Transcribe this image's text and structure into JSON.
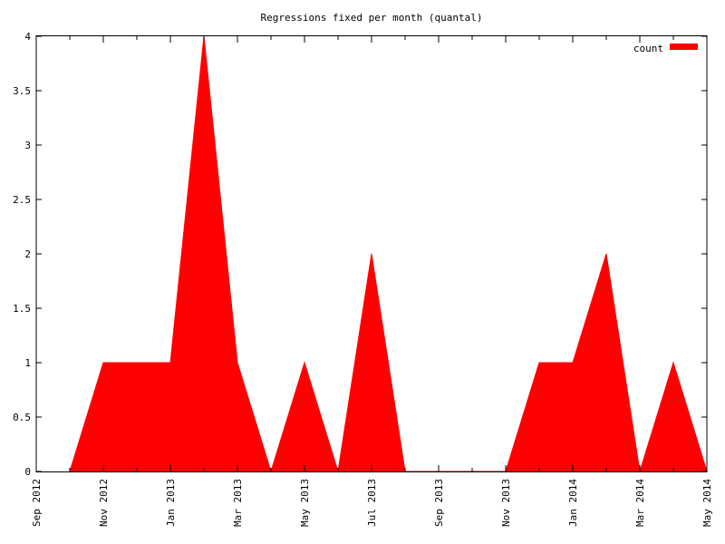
{
  "chart_data": {
    "type": "area",
    "title": "Regressions fixed per month (quantal)",
    "xlabel": "",
    "ylabel": "",
    "legend": {
      "label": "count",
      "position": "top-right"
    },
    "fill_color": "#ff0000",
    "grid": false,
    "xlim": [
      "2012-09",
      "2014-05"
    ],
    "ylim": [
      0,
      4
    ],
    "x_ticks": [
      "Sep 2012",
      "Nov 2012",
      "Jan 2013",
      "Mar 2013",
      "May 2013",
      "Jul 2013",
      "Sep 2013",
      "Nov 2013",
      "Jan 2014",
      "Mar 2014",
      "May 2014"
    ],
    "x_tick_months": [
      "2012-09",
      "2012-11",
      "2013-01",
      "2013-03",
      "2013-05",
      "2013-07",
      "2013-09",
      "2013-11",
      "2014-01",
      "2014-03",
      "2014-05"
    ],
    "y_ticks": [
      "0",
      "0.5",
      "1",
      "1.5",
      "2",
      "2.5",
      "3",
      "3.5",
      "4"
    ],
    "y_tick_values": [
      0,
      0.5,
      1,
      1.5,
      2,
      2.5,
      3,
      3.5,
      4
    ],
    "series": [
      {
        "x": [
          "2012-10",
          "2012-11",
          "2012-12",
          "2013-01",
          "2013-02",
          "2013-03",
          "2013-04",
          "2013-05",
          "2013-06",
          "2013-07",
          "2013-08",
          "2013-09",
          "2013-10",
          "2013-11",
          "2013-12",
          "2014-01",
          "2014-02",
          "2014-03",
          "2014-04",
          "2014-05"
        ],
        "values": [
          0,
          1,
          1,
          1,
          4,
          1,
          0,
          1,
          0,
          2,
          0,
          0,
          0,
          0,
          1,
          1,
          2,
          0,
          1,
          0
        ]
      }
    ]
  }
}
